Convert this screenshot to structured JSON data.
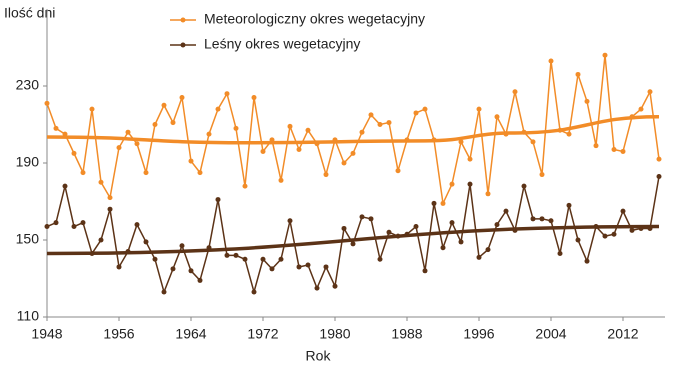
{
  "chart_data": {
    "type": "line",
    "y_label": "Ilość dni",
    "x_label": "Rok",
    "x": [
      1948,
      1949,
      1950,
      1951,
      1952,
      1953,
      1954,
      1955,
      1956,
      1957,
      1958,
      1959,
      1960,
      1961,
      1962,
      1963,
      1964,
      1965,
      1966,
      1967,
      1968,
      1969,
      1970,
      1971,
      1972,
      1973,
      1974,
      1975,
      1976,
      1977,
      1978,
      1979,
      1980,
      1981,
      1982,
      1983,
      1984,
      1985,
      1986,
      1987,
      1988,
      1989,
      1990,
      1991,
      1992,
      1993,
      1994,
      1995,
      1996,
      1997,
      1998,
      1999,
      2000,
      2001,
      2002,
      2003,
      2004,
      2005,
      2006,
      2007,
      2008,
      2009,
      2010,
      2011,
      2012,
      2013,
      2014,
      2015,
      2016
    ],
    "series": [
      {
        "name": "Meteorologiczny okres wegetacyjny",
        "color": "#f28c28",
        "values": [
          221,
          208,
          205,
          195,
          185,
          218,
          180,
          172,
          198,
          206,
          200,
          185,
          210,
          220,
          211,
          224,
          191,
          185,
          205,
          218,
          226,
          208,
          178,
          224,
          196,
          202,
          181,
          209,
          197,
          207,
          200,
          184,
          202,
          190,
          195,
          206,
          215,
          210,
          211,
          186,
          202,
          216,
          218,
          202,
          169,
          179,
          201,
          192,
          218,
          174,
          214,
          205,
          227,
          206,
          201,
          184,
          243,
          207,
          205,
          236,
          222,
          199,
          246,
          197,
          196,
          214,
          218,
          227,
          192
        ],
        "trend": {
          "x": [
            1948,
            1970,
            1990,
            2000,
            2016
          ],
          "values": [
            203.5,
            200.5,
            201.5,
            205.6,
            214
          ]
        }
      },
      {
        "name": "Leśny okres wegetacyjny",
        "color": "#5c3317",
        "values": [
          157,
          159,
          178,
          157,
          159,
          143,
          150,
          166,
          136,
          144,
          158,
          149,
          140,
          123,
          135,
          147,
          134,
          129,
          146,
          171,
          142,
          142,
          140,
          123,
          140,
          135,
          140,
          160,
          136,
          137,
          125,
          136,
          126,
          156,
          148,
          162,
          161,
          140,
          154,
          152,
          153,
          157,
          134,
          169,
          146,
          159,
          149,
          179,
          141,
          145,
          158,
          165,
          155,
          178,
          161,
          161,
          160,
          143,
          168,
          150,
          139,
          157,
          152,
          153,
          165,
          155,
          156,
          156,
          183
        ],
        "trend": {
          "x": [
            1948,
            2016
          ],
          "values": [
            143,
            157
          ]
        }
      }
    ],
    "xlim": [
      1948,
      2016
    ],
    "xticks": [
      1948,
      1956,
      1964,
      1972,
      1980,
      1988,
      1996,
      2004,
      2012
    ],
    "ylim": [
      110,
      270
    ],
    "yticks": [
      110,
      150,
      190,
      230
    ],
    "legend": "top"
  }
}
